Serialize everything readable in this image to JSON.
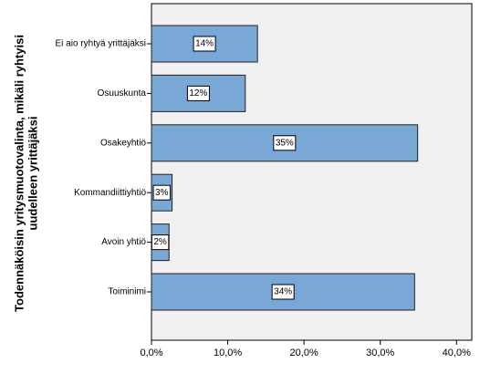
{
  "chart_data": {
    "type": "barh",
    "y_label": [
      "Todennäköisin yritysmuotovalinta, mikäli ryhtyisi",
      "uudelleen yrittäjäksi"
    ],
    "categories": [
      "Ei aio ryhtyä yrittäjäksi",
      "Osuuskunta",
      "Osakeyhtiö",
      "Kommandiittiyhtiö",
      "Avoin yhtiö",
      "Toiminimi"
    ],
    "values": [
      13.9,
      12.3,
      34.9,
      2.7,
      2.3,
      34.5
    ],
    "value_labels": [
      "14%",
      "12%",
      "35%",
      "3%",
      "2%",
      "34%"
    ],
    "color": "#79a7d6",
    "xlim": [
      0,
      42
    ],
    "xticks": [
      {
        "value": 0,
        "label": "0,0%"
      },
      {
        "value": 10,
        "label": "10,0%"
      },
      {
        "value": 20,
        "label": "20,0%"
      },
      {
        "value": 30,
        "label": "30,0%"
      },
      {
        "value": 40,
        "label": "40,0%"
      }
    ],
    "background": "#f0f0f0"
  }
}
